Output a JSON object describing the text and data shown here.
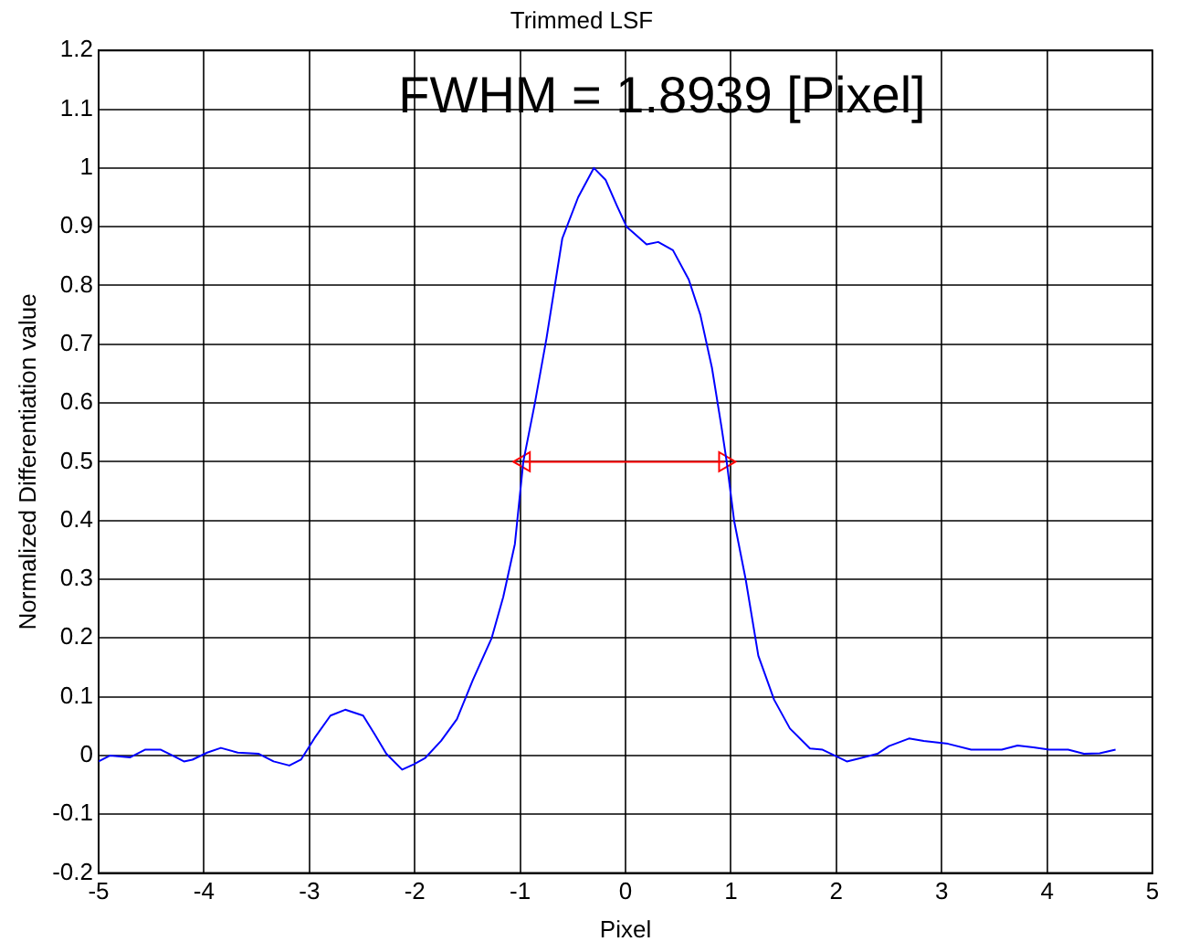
{
  "chart_data": {
    "type": "line",
    "title": "Trimmed LSF",
    "xlabel": "Pixel",
    "ylabel": "Normalized Differentiation value",
    "annotations": [
      "FWHM = 1.8939 [Pixel]"
    ],
    "xlim": [
      -5,
      5
    ],
    "xticks": [
      -5,
      -4,
      -3,
      -2,
      -1,
      0,
      1,
      2,
      3,
      4,
      5
    ],
    "ylim": [
      -0.2,
      1.2
    ],
    "yticks": [
      -0.2,
      -0.1,
      0,
      0.1,
      0.2,
      0.3,
      0.4,
      0.5,
      0.6,
      0.7,
      0.8,
      0.9,
      1,
      1.1,
      1.2
    ],
    "grid": true,
    "legend": false,
    "line_style": "solid",
    "series": [
      {
        "color": "#0000ff",
        "marker": "none",
        "x": [
          -5,
          -4.89,
          -4.7,
          -4.56,
          -4.41,
          -4.3,
          -4.19,
          -4.11,
          -3.97,
          -3.84,
          -3.68,
          -3.48,
          -3.34,
          -3.19,
          -3.08,
          -2.95,
          -2.8,
          -2.66,
          -2.49,
          -2.38,
          -2.27,
          -2.12,
          -2.01,
          -1.9,
          -1.75,
          -1.6,
          -1.45,
          -1.27,
          -1.16,
          -1.05,
          -0.97,
          -0.86,
          -0.75,
          -0.6,
          -0.45,
          -0.3,
          -0.19,
          -0.08,
          0.01,
          0.2,
          0.31,
          0.45,
          0.6,
          0.71,
          0.82,
          0.91,
          0.96,
          1.03,
          1.14,
          1.26,
          1.41,
          1.56,
          1.75,
          1.87,
          2.1,
          2.24,
          2.39,
          2.5,
          2.69,
          2.83,
          3.06,
          3.28,
          3.57,
          3.72,
          3.87,
          4.02,
          4.2,
          4.35,
          4.5,
          4.65
        ],
        "values": [
          -0.01,
          0,
          -0.003,
          0.01,
          0.01,
          0,
          -0.01,
          -0.007,
          0.005,
          0.013,
          0.005,
          0.003,
          -0.01,
          -0.017,
          -0.007,
          0.03,
          0.068,
          0.078,
          0.068,
          0.036,
          0.003,
          -0.024,
          -0.015,
          -0.004,
          0.025,
          0.062,
          0.128,
          0.2,
          0.27,
          0.36,
          0.5,
          0.6,
          0.71,
          0.88,
          0.95,
          1,
          0.98,
          0.935,
          0.9,
          0.87,
          0.874,
          0.86,
          0.81,
          0.75,
          0.66,
          0.56,
          0.5,
          0.4,
          0.3,
          0.17,
          0.095,
          0.046,
          0.012,
          0.01,
          -0.01,
          -0.004,
          0.003,
          0.016,
          0.029,
          0.025,
          0.02,
          0.01,
          0.01,
          0.017,
          0.014,
          0.01,
          0.01,
          0.003,
          0.004,
          0.01
        ]
      },
      {
        "color": "#ff0000",
        "marker": "triangle",
        "x": [
          -0.96,
          0.94
        ],
        "values": [
          0.5,
          0.5
        ]
      }
    ]
  }
}
